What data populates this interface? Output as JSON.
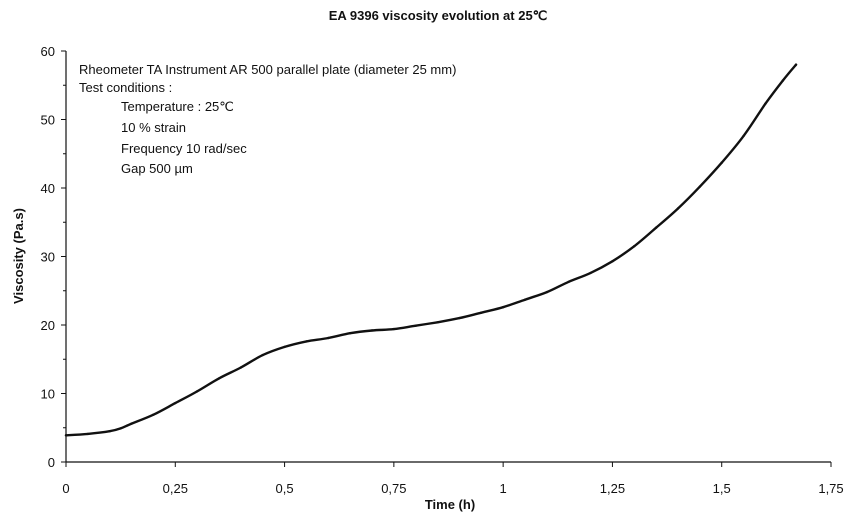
{
  "chart_data": {
    "type": "line",
    "title": "EA 9396 viscosity evolution at 25℃",
    "xlabel": "Time (h)",
    "ylabel": "Viscosity (Pa.s)",
    "xlim": [
      0,
      1.75
    ],
    "ylim": [
      0,
      60
    ],
    "x_ticks": [
      0,
      0.25,
      0.5,
      0.75,
      1,
      1.25,
      1.5,
      1.75
    ],
    "x_tick_labels": [
      "0",
      "0,25",
      "0,5",
      "0,75",
      "1",
      "1,25",
      "1,5",
      "1,75"
    ],
    "y_ticks": [
      0,
      10,
      20,
      30,
      40,
      50,
      60
    ],
    "y_tick_labels": [
      "0",
      "10",
      "20",
      "30",
      "40",
      "50",
      "60"
    ],
    "grid": false,
    "legend": "none",
    "line_color": "#111111",
    "annotation": {
      "lines": [
        "Rheometer TA Instrument AR 500 parallel plate (diameter 25 mm)",
        "Test conditions :",
        "Temperature : 25℃",
        "10 % strain",
        "Frequency 10 rad/sec",
        "Gap 500 µm"
      ]
    },
    "series": [
      {
        "x": [
          0,
          0.05,
          0.1,
          0.125,
          0.15,
          0.2,
          0.25,
          0.3,
          0.35,
          0.4,
          0.45,
          0.5,
          0.55,
          0.6,
          0.65,
          0.7,
          0.75,
          0.8,
          0.85,
          0.9,
          0.95,
          1.0,
          1.05,
          1.1,
          1.15,
          1.2,
          1.25,
          1.3,
          1.35,
          1.4,
          1.45,
          1.5,
          1.55,
          1.6,
          1.64,
          1.67
        ],
        "values": [
          3.9,
          4.1,
          4.5,
          4.9,
          5.6,
          6.9,
          8.6,
          10.3,
          12.2,
          13.8,
          15.6,
          16.8,
          17.6,
          18.1,
          18.8,
          19.2,
          19.4,
          19.9,
          20.4,
          21.0,
          21.8,
          22.6,
          23.7,
          24.8,
          26.3,
          27.6,
          29.3,
          31.5,
          34.2,
          37.0,
          40.2,
          43.7,
          47.6,
          52.3,
          55.7,
          58.0
        ]
      }
    ]
  }
}
